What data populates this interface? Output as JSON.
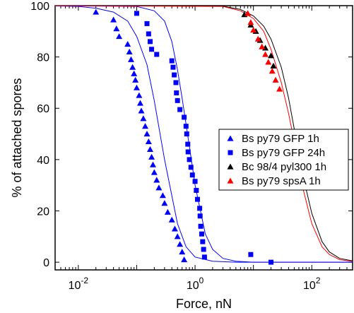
{
  "chart_data": {
    "type": "scatter",
    "title": "",
    "xlabel": "Force, nN",
    "ylabel": "% of attached spores",
    "xscale": "log",
    "xlim": [
      0.004,
      500
    ],
    "ylim": [
      -3,
      100
    ],
    "x_ticks": [
      {
        "value": 0.01,
        "base": "10",
        "exp": "-2"
      },
      {
        "value": 1,
        "base": "10",
        "exp": "0"
      },
      {
        "value": 100,
        "base": "10",
        "exp": "2"
      }
    ],
    "y_ticks": [
      0,
      20,
      40,
      60,
      80,
      100
    ],
    "legend_position": "center-right",
    "series": [
      {
        "name": "Bs py79 GFP 1h",
        "marker": "triangle",
        "color": "#0000ff",
        "points": [
          [
            0.02,
            97.5
          ],
          [
            0.04,
            94.5
          ],
          [
            0.045,
            91
          ],
          [
            0.05,
            88
          ],
          [
            0.07,
            85
          ],
          [
            0.075,
            82
          ],
          [
            0.08,
            79
          ],
          [
            0.085,
            76
          ],
          [
            0.09,
            73.5
          ],
          [
            0.095,
            71
          ],
          [
            0.1,
            68
          ],
          [
            0.11,
            65
          ],
          [
            0.115,
            62
          ],
          [
            0.12,
            59
          ],
          [
            0.13,
            56
          ],
          [
            0.14,
            53
          ],
          [
            0.15,
            50
          ],
          [
            0.16,
            47
          ],
          [
            0.17,
            44
          ],
          [
            0.18,
            41
          ],
          [
            0.19,
            38
          ],
          [
            0.2,
            35
          ],
          [
            0.22,
            32
          ],
          [
            0.24,
            29
          ],
          [
            0.28,
            26
          ],
          [
            0.3,
            23
          ],
          [
            0.34,
            19.5
          ],
          [
            0.4,
            16.5
          ],
          [
            0.45,
            13
          ],
          [
            0.5,
            10
          ],
          [
            0.55,
            7
          ],
          [
            0.6,
            4
          ],
          [
            0.65,
            1
          ]
        ],
        "fit": [
          [
            0.004,
            99.9
          ],
          [
            0.01,
            99.7
          ],
          [
            0.02,
            99
          ],
          [
            0.04,
            97.5
          ],
          [
            0.07,
            94
          ],
          [
            0.1,
            88
          ],
          [
            0.15,
            77
          ],
          [
            0.2,
            63
          ],
          [
            0.3,
            40
          ],
          [
            0.5,
            15
          ],
          [
            0.7,
            6
          ],
          [
            1,
            2
          ],
          [
            2,
            0.4
          ],
          [
            5,
            0
          ],
          [
            500,
            0
          ]
        ]
      },
      {
        "name": "Bs py79 GFP 24h",
        "marker": "square",
        "color": "#0000ff",
        "points": [
          [
            0.1,
            97
          ],
          [
            0.15,
            93
          ],
          [
            0.16,
            89
          ],
          [
            0.17,
            86
          ],
          [
            0.18,
            83
          ],
          [
            0.22,
            81
          ],
          [
            0.4,
            78.5
          ],
          [
            0.42,
            76
          ],
          [
            0.44,
            73
          ],
          [
            0.47,
            70
          ],
          [
            0.48,
            66
          ],
          [
            0.5,
            63
          ],
          [
            0.55,
            59.5
          ],
          [
            0.65,
            56.5
          ],
          [
            0.7,
            53
          ],
          [
            0.72,
            50
          ],
          [
            0.75,
            46
          ],
          [
            0.76,
            43
          ],
          [
            0.8,
            40
          ],
          [
            0.85,
            37
          ],
          [
            0.9,
            34
          ],
          [
            1.0,
            31.5
          ],
          [
            1.05,
            28
          ],
          [
            1.1,
            24.5
          ],
          [
            1.2,
            21
          ],
          [
            1.22,
            18
          ],
          [
            1.25,
            14
          ],
          [
            1.3,
            11
          ],
          [
            1.35,
            8
          ],
          [
            1.4,
            5
          ],
          [
            1.45,
            2
          ],
          [
            9,
            3
          ],
          [
            20,
            0
          ]
        ],
        "fit": [
          [
            0.004,
            100
          ],
          [
            0.1,
            99.7
          ],
          [
            0.2,
            98
          ],
          [
            0.3,
            94
          ],
          [
            0.4,
            86
          ],
          [
            0.5,
            75
          ],
          [
            0.6,
            64
          ],
          [
            0.8,
            45
          ],
          [
            1,
            30
          ],
          [
            1.5,
            11
          ],
          [
            2,
            5
          ],
          [
            3,
            1.5
          ],
          [
            5,
            0.4
          ],
          [
            10,
            0
          ],
          [
            500,
            0
          ]
        ]
      },
      {
        "name": "Bc 98/4 pyl300 1h",
        "marker": "triangle",
        "color": "#000000",
        "points": [
          [
            7,
            96.5
          ],
          [
            9,
            92.5
          ],
          [
            11,
            90
          ],
          [
            13,
            86.5
          ],
          [
            16,
            83.5
          ],
          [
            20,
            80.5
          ],
          [
            22,
            76.5
          ]
        ],
        "fit": [
          [
            0.004,
            100
          ],
          [
            3,
            99.8
          ],
          [
            6,
            98.5
          ],
          [
            10,
            96
          ],
          [
            15,
            92
          ],
          [
            20,
            87
          ],
          [
            30,
            76
          ],
          [
            40,
            64
          ],
          [
            50,
            52
          ],
          [
            70,
            34
          ],
          [
            100,
            19
          ],
          [
            150,
            8
          ],
          [
            200,
            4
          ],
          [
            300,
            1.5
          ],
          [
            500,
            0.5
          ]
        ]
      },
      {
        "name": "Bs py79 spsA 1h",
        "marker": "triangle",
        "color": "#ff0000",
        "points": [
          [
            8,
            97
          ],
          [
            9,
            93.5
          ],
          [
            10,
            90.5
          ],
          [
            12,
            87
          ],
          [
            14,
            84
          ],
          [
            16,
            81
          ],
          [
            18,
            78
          ],
          [
            21,
            74.5
          ],
          [
            24,
            71
          ],
          [
            28,
            67.5
          ]
        ],
        "fit": [
          [
            0.004,
            100
          ],
          [
            3,
            99.7
          ],
          [
            6,
            98
          ],
          [
            10,
            95
          ],
          [
            15,
            90
          ],
          [
            20,
            83
          ],
          [
            30,
            70
          ],
          [
            40,
            58
          ],
          [
            50,
            47
          ],
          [
            70,
            29
          ],
          [
            100,
            15
          ],
          [
            150,
            6
          ],
          [
            200,
            3
          ],
          [
            300,
            1
          ],
          [
            500,
            0.3
          ]
        ]
      }
    ]
  }
}
